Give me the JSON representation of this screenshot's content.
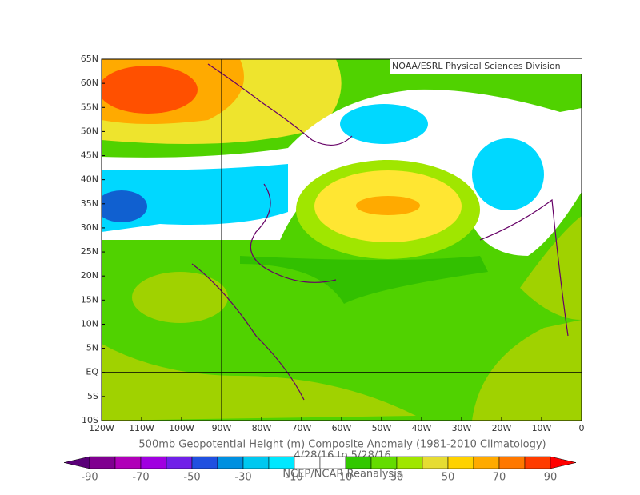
{
  "map": {
    "credit": "NOAA/ESRL Physical Sciences Division",
    "title": "500mb Geopotential Height (m) Composite Anomaly (1981-2010 Climatology)",
    "dates": "4/28/16  to 5/28/16",
    "source": "NCEP/NCAR Reanalysis",
    "lat_labels": [
      "65N",
      "60N",
      "55N",
      "50N",
      "45N",
      "40N",
      "35N",
      "30N",
      "25N",
      "20N",
      "15N",
      "10N",
      "5N",
      "EQ",
      "5S",
      "10S"
    ],
    "lon_labels": [
      "120W",
      "110W",
      "100W",
      "90W",
      "80W",
      "70W",
      "60W",
      "50W",
      "40W",
      "30W",
      "20W",
      "10W",
      "0"
    ],
    "colorbar": {
      "ticks": [
        -90,
        -70,
        -50,
        -30,
        -10,
        10,
        30,
        50,
        70,
        90
      ],
      "colors": [
        "#5a0078",
        "#800090",
        "#b000b8",
        "#a000e0",
        "#7020e8",
        "#2050e0",
        "#0090e0",
        "#00c8f0",
        "#00e8ff",
        "#ffffff",
        "#ffffff",
        "#32c800",
        "#64dc00",
        "#a0e600",
        "#e6dc32",
        "#ffd200",
        "#ffaa00",
        "#ff7800",
        "#ff3c00",
        "#ff0000"
      ]
    }
  }
}
